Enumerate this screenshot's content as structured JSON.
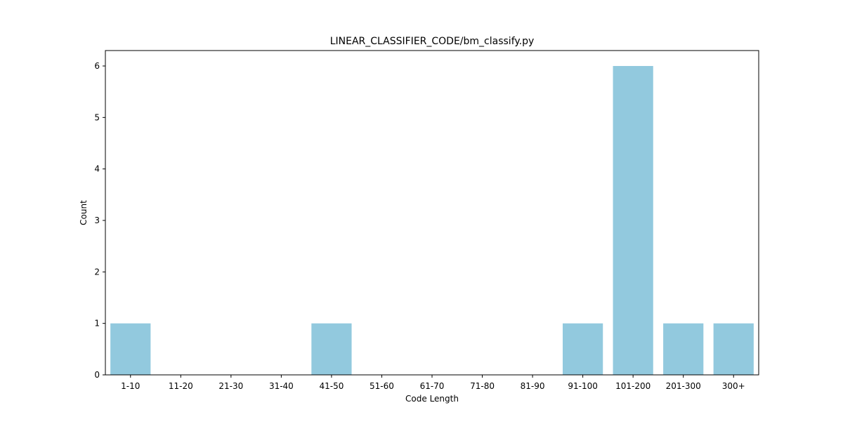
{
  "chart_data": {
    "type": "bar",
    "title": "LINEAR_CLASSIFIER_CODE/bm_classify.py",
    "xlabel": "Code Length",
    "ylabel": "Count",
    "categories": [
      "1-10",
      "11-20",
      "21-30",
      "31-40",
      "41-50",
      "51-60",
      "61-70",
      "71-80",
      "81-90",
      "91-100",
      "101-200",
      "201-300",
      "300+"
    ],
    "values": [
      1,
      0,
      0,
      0,
      1,
      0,
      0,
      0,
      0,
      1,
      6,
      1,
      1
    ],
    "ylim": [
      0,
      6.3
    ],
    "yticks": [
      "0",
      "1",
      "2",
      "3",
      "4",
      "5",
      "6"
    ],
    "grid": false,
    "legend": "none",
    "bar_color": "#92c9de"
  }
}
